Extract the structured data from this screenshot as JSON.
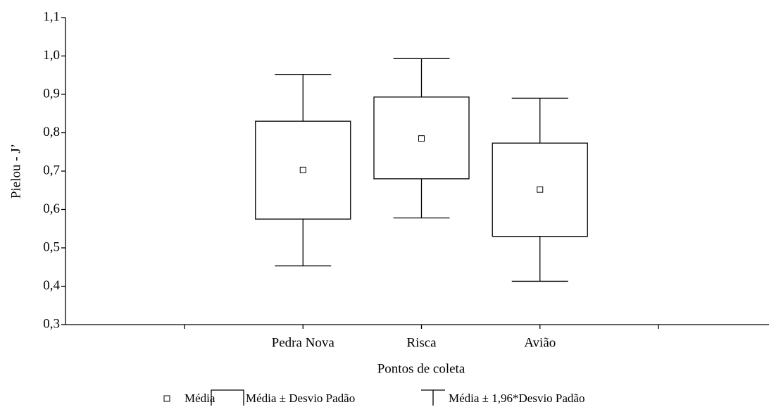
{
  "chart_data": {
    "type": "box",
    "y_label": "Pielou - J’",
    "x_label": "Pontos de coleta",
    "categories": [
      null,
      "Pedra Nova",
      "Risca",
      "Avião",
      null
    ],
    "mean": [
      null,
      0.703,
      0.785,
      0.652,
      null
    ],
    "box_low": [
      null,
      0.575,
      0.68,
      0.53,
      null
    ],
    "box_high": [
      null,
      0.83,
      0.893,
      0.773,
      null
    ],
    "whisker_low": [
      null,
      0.453,
      0.578,
      0.413,
      null
    ],
    "whisker_high": [
      null,
      0.952,
      0.993,
      0.89,
      null
    ],
    "legend": [
      "Média",
      "Média ± Desvio Padão",
      "Média ± 1,96*Desvio Padão"
    ],
    "color": "#000000",
    "ylim": [
      0.3,
      1.1
    ],
    "yticks": [
      {
        "value": 0.3,
        "label": "0,3"
      },
      {
        "value": 0.4,
        "label": "0,4"
      },
      {
        "value": 0.5,
        "label": "0,5"
      },
      {
        "value": 0.6,
        "label": "0,6"
      },
      {
        "value": 0.7,
        "label": "0,7"
      },
      {
        "value": 0.8,
        "label": "0,8"
      },
      {
        "value": 0.9,
        "label": "0,9"
      },
      {
        "value": 1.0,
        "label": "1,0"
      },
      {
        "value": 1.1,
        "label": "1,1"
      }
    ],
    "grid": false
  }
}
